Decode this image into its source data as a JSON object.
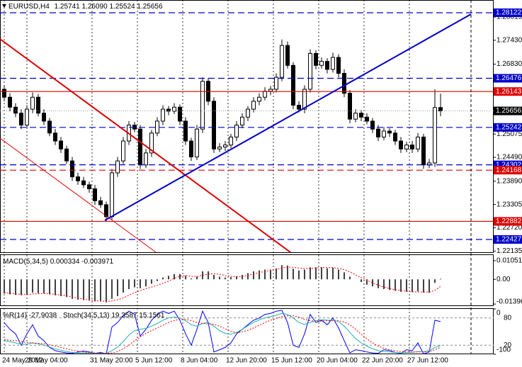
{
  "chart_data": [
    {
      "type": "candlestick",
      "title": "EURUSD,H4",
      "ohlc_labels": [
        "1.25741",
        "1.26090",
        "1.25524",
        "1.25656"
      ],
      "color": "#000000",
      "open": [
        1.262,
        1.26,
        1.2575,
        1.256,
        1.253,
        1.257,
        1.26,
        1.256,
        1.254,
        1.251,
        1.249,
        1.247,
        1.244,
        1.24,
        1.239,
        1.238,
        1.237,
        1.234,
        1.233,
        1.23,
        1.241,
        1.244,
        1.249,
        1.253,
        1.252,
        1.243,
        1.246,
        1.251,
        1.254,
        1.257,
        1.2565,
        1.2575,
        1.254,
        1.249,
        1.245,
        1.252,
        1.264,
        1.259,
        1.247,
        1.2475,
        1.248,
        1.25,
        1.253,
        1.255,
        1.257,
        1.259,
        1.26,
        1.2615,
        1.262,
        1.265,
        1.273,
        1.268,
        1.258,
        1.257,
        1.262,
        1.271,
        1.268,
        1.269,
        1.267,
        1.27,
        1.266,
        1.261,
        1.2545,
        1.256,
        1.255,
        1.254,
        1.252,
        1.25,
        1.2515,
        1.251,
        1.249,
        1.247,
        1.248,
        1.247,
        1.25,
        1.243,
        1.2435,
        1.25741
      ],
      "high": [
        1.263,
        1.261,
        1.2585,
        1.257,
        1.258,
        1.2612,
        1.2608,
        1.257,
        1.2548,
        1.252,
        1.25,
        1.2478,
        1.245,
        1.241,
        1.24,
        1.2388,
        1.238,
        1.235,
        1.2338,
        1.242,
        1.245,
        1.25,
        1.254,
        1.2538,
        1.253,
        1.247,
        1.2518,
        1.255,
        1.258,
        1.2578,
        1.2585,
        1.2582,
        1.255,
        1.2498,
        1.253,
        1.265,
        1.2648,
        1.26,
        1.2485,
        1.249,
        1.2508,
        1.254,
        1.256,
        1.2578,
        1.26,
        1.261,
        1.2625,
        1.2628,
        1.266,
        1.2745,
        1.274,
        1.2688,
        1.259,
        1.263,
        1.272,
        1.2718,
        1.27,
        1.2698,
        1.2712,
        1.2708,
        1.267,
        1.2618,
        1.257,
        1.2568,
        1.256,
        1.2548,
        1.253,
        1.2525,
        1.2522,
        1.2518,
        1.25,
        1.2488,
        1.249,
        1.251,
        1.2508,
        1.2445,
        1.262,
        1.2609
      ],
      "low": [
        1.259,
        1.2565,
        1.255,
        1.252,
        1.2522,
        1.256,
        1.2552,
        1.253,
        1.2502,
        1.248,
        1.246,
        1.2432,
        1.239,
        1.238,
        1.2372,
        1.236,
        1.233,
        1.2322,
        1.2288,
        1.2292,
        1.24,
        1.2432,
        1.248,
        1.2512,
        1.242,
        1.2422,
        1.245,
        1.2502,
        1.253,
        1.2555,
        1.2558,
        1.253,
        1.248,
        1.244,
        1.2442,
        1.251,
        1.258,
        1.246,
        1.2462,
        1.2465,
        1.2472,
        1.249,
        1.2522,
        1.254,
        1.2562,
        1.258,
        1.2592,
        1.2605,
        1.2612,
        1.264,
        1.2672,
        1.257,
        1.2562,
        1.256,
        1.2612,
        1.267,
        1.2672,
        1.266,
        1.2662,
        1.265,
        1.26,
        1.2535,
        1.2537,
        1.254,
        1.2532,
        1.251,
        1.249,
        1.2492,
        1.25,
        1.248,
        1.246,
        1.2462,
        1.246,
        1.2462,
        1.242,
        1.2422,
        1.2425,
        1.25524
      ],
      "close": [
        1.26,
        1.2575,
        1.256,
        1.253,
        1.257,
        1.26,
        1.256,
        1.254,
        1.251,
        1.249,
        1.247,
        1.244,
        1.24,
        1.239,
        1.238,
        1.237,
        1.234,
        1.233,
        1.23,
        1.241,
        1.244,
        1.249,
        1.253,
        1.252,
        1.243,
        1.246,
        1.251,
        1.254,
        1.257,
        1.2565,
        1.2575,
        1.254,
        1.249,
        1.245,
        1.252,
        1.264,
        1.259,
        1.247,
        1.2475,
        1.248,
        1.25,
        1.253,
        1.255,
        1.257,
        1.259,
        1.26,
        1.2615,
        1.262,
        1.265,
        1.273,
        1.268,
        1.258,
        1.257,
        1.262,
        1.271,
        1.268,
        1.269,
        1.267,
        1.27,
        1.266,
        1.261,
        1.2545,
        1.256,
        1.255,
        1.254,
        1.252,
        1.25,
        1.2515,
        1.251,
        1.249,
        1.247,
        1.248,
        1.247,
        1.25,
        1.243,
        1.2435,
        1.25741,
        1.25656
      ],
      "xlim": [
        -0.75,
        86.375
      ],
      "xticks": [
        {
          "value": 0,
          "label": "24 May 2012"
        },
        {
          "value": 4,
          "label": "29 May 04:00"
        },
        {
          "value": 15.5,
          "label": "31 May 20:00"
        },
        {
          "value": 23.5,
          "label": "5 Jun 12:00"
        },
        {
          "value": 31.5,
          "label": "8 Jun 04:00"
        },
        {
          "value": 39.5,
          "label": "12 Jun 20:00"
        },
        {
          "value": 47.5,
          "label": "15 Jun 12:00"
        },
        {
          "value": 55.5,
          "label": "20 Jun 04:00"
        },
        {
          "value": 63.5,
          "label": "22 Jun 20:00"
        },
        {
          "value": 71.5,
          "label": "27 Jun 12:00"
        }
      ],
      "ylim": [
        1.22089,
        1.28442
      ],
      "yticks": [
        1.28015,
        {
          "value": 1.2743,
          "label": "1.27430"
        },
        {
          "value": 1.2683,
          "label": "1.26830"
        },
        1.25075,
        {
          "value": 1.2449,
          "label": "1.24490"
        },
        {
          "value": 1.2389,
          "label": "1.23890"
        },
        1.23305,
        {
          "value": 1.2272,
          "label": "1.22720"
        },
        1.22135
      ],
      "levels": [
        {
          "value": 1.28122,
          "color": "#0000cc",
          "style": "dashed"
        },
        {
          "value": 1.26476,
          "color": "#0000cc",
          "style": "dashed"
        },
        {
          "value": 1.26143,
          "color": "#dd0000",
          "style": "solid"
        },
        {
          "value": 1.25242,
          "color": "#0000cc",
          "style": "dashed"
        },
        {
          "value": 1.24302,
          "color": "#0000cc",
          "style": "dashed"
        },
        {
          "value": 1.24168,
          "color": "#dd0000",
          "style": "dashed"
        },
        {
          "value": 1.22882,
          "color": "#dd0000",
          "style": "solid"
        },
        {
          "value": 1.22427,
          "color": "#0000cc",
          "style": "dashed"
        }
      ],
      "grid": true
    },
    {
      "type": "macd",
      "title": "MACD(5,34,5)",
      "series": [
        {
          "color": "#000000",
          "values": [
            -0.008,
            -0.0085,
            -0.0088,
            -0.009,
            -0.0085,
            -0.0075,
            -0.0078,
            -0.008,
            -0.0085,
            -0.009,
            -0.0095,
            -0.01,
            -0.011,
            -0.0115,
            -0.0118,
            -0.012,
            -0.0125,
            -0.0125,
            -0.013,
            -0.011,
            -0.0095,
            -0.0075,
            -0.0055,
            -0.0045,
            -0.005,
            -0.004,
            -0.0025,
            -0.001,
            0.001,
            0.002,
            0.003,
            0.003,
            0.002,
            0.0005,
            0.0015,
            0.0045,
            0.0045,
            0.0025,
            0.0015,
            0.001,
            0.0012,
            0.0018,
            0.0025,
            0.0035,
            0.0045,
            0.005,
            0.0055,
            0.0055,
            0.0062,
            0.008,
            0.0078,
            0.006,
            0.005,
            0.0055,
            0.0068,
            0.0068,
            0.0068,
            0.0062,
            0.0065,
            0.0055,
            0.004,
            0.0015,
            0.0,
            -0.0015,
            -0.003,
            -0.004,
            -0.005,
            -0.0055,
            -0.006,
            -0.0065,
            -0.007,
            -0.007,
            -0.0072,
            -0.0068,
            -0.0075,
            -0.0075,
            -0.002,
            0.000334
          ]
        },
        {
          "color": "#ff0000",
          "style": "dotted",
          "values": [
            -0.0075,
            -0.0078,
            -0.0082,
            -0.0085,
            -0.0086,
            -0.0083,
            -0.0081,
            -0.008,
            -0.0082,
            -0.0085,
            -0.0088,
            -0.0093,
            -0.01,
            -0.0106,
            -0.0112,
            -0.0117,
            -0.012,
            -0.0122,
            -0.0125,
            -0.0122,
            -0.0115,
            -0.0105,
            -0.009,
            -0.0075,
            -0.0064,
            -0.0053,
            -0.0043,
            -0.0034,
            -0.0022,
            -0.001,
            0.0005,
            0.0018,
            0.0022,
            0.0017,
            0.0016,
            0.0023,
            0.003,
            0.0031,
            0.0029,
            0.0022,
            0.0017,
            0.0015,
            0.0016,
            0.0022,
            0.003,
            0.0038,
            0.0045,
            0.0051,
            0.0056,
            0.0064,
            0.007,
            0.0068,
            0.0064,
            0.0061,
            0.0062,
            0.0064,
            0.0066,
            0.0066,
            0.0066,
            0.0062,
            0.0055,
            0.0042,
            0.0026,
            0.001,
            -0.0005,
            -0.002,
            -0.0033,
            -0.0043,
            -0.0052,
            -0.0058,
            -0.0063,
            -0.0067,
            -0.007,
            -0.0071,
            -0.0072,
            -0.0072,
            -0.0063,
            -0.003971
          ]
        }
      ],
      "ylim": [
        -0.0151,
        0.0137
      ],
      "yticks": [
        0.010515,
        {
          "value": 0,
          "label": "0.00"
        },
        -0.01396
      ]
    },
    {
      "type": "oscillator",
      "title": "%R(14)",
      "subtitle": "Stoch(34,5,13)",
      "series": [
        {
          "color": "#0000ff",
          "axis": "y2",
          "values": [
            -30,
            -45,
            -55,
            -80,
            -55,
            -35,
            -60,
            -70,
            -85,
            -92,
            -95,
            -97,
            -98,
            -95,
            -93,
            -95,
            -98,
            -96,
            -99,
            -40,
            -30,
            -15,
            -5,
            -12,
            -60,
            -45,
            -25,
            -12,
            -5,
            -10,
            -5,
            -25,
            -55,
            -80,
            -45,
            -5,
            -30,
            -95,
            -90,
            -85,
            -75,
            -55,
            -45,
            -35,
            -25,
            -20,
            -12,
            -10,
            -5,
            -3,
            -30,
            -80,
            -85,
            -55,
            -12,
            -30,
            -25,
            -35,
            -20,
            -42,
            -70,
            -97,
            -90,
            -92,
            -95,
            -97,
            -98,
            -90,
            -92,
            -96,
            -98,
            -90,
            -92,
            -75,
            -99,
            -95,
            -25,
            -27.9038
          ]
        },
        {
          "color": "#20b2aa",
          "values": [
            30,
            28,
            25,
            22,
            22,
            25,
            23,
            20,
            16,
            12,
            9,
            6,
            4,
            3,
            3,
            3,
            2,
            2,
            2,
            8,
            16,
            28,
            42,
            52,
            55,
            57,
            62,
            68,
            75,
            80,
            82,
            80,
            74,
            65,
            62,
            68,
            70,
            62,
            52,
            46,
            44,
            48,
            55,
            63,
            70,
            76,
            80,
            83,
            86,
            90,
            88,
            80,
            70,
            66,
            70,
            74,
            76,
            75,
            75,
            72,
            62,
            48,
            35,
            25,
            18,
            12,
            8,
            6,
            5,
            4,
            3,
            4,
            4,
            6,
            6,
            8,
            15,
            19.3587
          ]
        },
        {
          "color": "#ff0000",
          "style": "dotted",
          "values": [
            32,
            31,
            30,
            28,
            26,
            25,
            24,
            23,
            21,
            18,
            15,
            12,
            9,
            7,
            5,
            4,
            3,
            3,
            2,
            3,
            6,
            12,
            20,
            30,
            38,
            46,
            52,
            58,
            64,
            70,
            74,
            77,
            77,
            74,
            70,
            68,
            67,
            66,
            62,
            56,
            50,
            48,
            49,
            53,
            58,
            64,
            70,
            75,
            79,
            83,
            85,
            85,
            82,
            77,
            74,
            73,
            73,
            74,
            74,
            74,
            71,
            65,
            55,
            44,
            34,
            25,
            18,
            13,
            10,
            8,
            6,
            5,
            5,
            5,
            5,
            6,
            10,
            15.1561
          ]
        }
      ],
      "ylim": [
        0,
        100
      ],
      "yticks": [
        20,
        80
      ],
      "y2lim": [
        -100,
        0
      ],
      "y2ticks": [
        -100,
        0
      ]
    }
  ]
}
